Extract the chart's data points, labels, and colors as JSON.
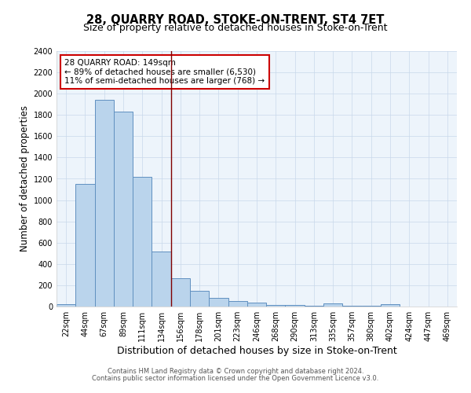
{
  "title": "28, QUARRY ROAD, STOKE-ON-TRENT, ST4 7ET",
  "subtitle": "Size of property relative to detached houses in Stoke-on-Trent",
  "xlabel": "Distribution of detached houses by size in Stoke-on-Trent",
  "ylabel": "Number of detached properties",
  "categories": [
    "22sqm",
    "44sqm",
    "67sqm",
    "89sqm",
    "111sqm",
    "134sqm",
    "156sqm",
    "178sqm",
    "201sqm",
    "223sqm",
    "246sqm",
    "268sqm",
    "290sqm",
    "313sqm",
    "335sqm",
    "357sqm",
    "380sqm",
    "402sqm",
    "424sqm",
    "447sqm",
    "469sqm"
  ],
  "values": [
    25,
    1155,
    1940,
    1830,
    1215,
    520,
    265,
    150,
    80,
    50,
    40,
    15,
    15,
    5,
    30,
    5,
    5,
    20,
    0,
    0,
    0
  ],
  "bar_color": "#bad4ec",
  "bar_edge_color": "#6090c0",
  "vline_x": 5.5,
  "vline_color": "#800000",
  "annotation_text": "28 QUARRY ROAD: 149sqm\n← 89% of detached houses are smaller (6,530)\n11% of semi-detached houses are larger (768) →",
  "annotation_box_color": "#ffffff",
  "annotation_box_edge": "#cc0000",
  "ylim": [
    0,
    2400
  ],
  "yticks": [
    0,
    200,
    400,
    600,
    800,
    1000,
    1200,
    1400,
    1600,
    1800,
    2000,
    2200,
    2400
  ],
  "grid_color": "#c8d8ea",
  "bg_color": "#edf4fb",
  "footer1": "Contains HM Land Registry data © Crown copyright and database right 2024.",
  "footer2": "Contains public sector information licensed under the Open Government Licence v3.0.",
  "title_fontsize": 10.5,
  "subtitle_fontsize": 9,
  "xlabel_fontsize": 9,
  "ylabel_fontsize": 8.5,
  "tick_fontsize": 7,
  "footer_fontsize": 6,
  "annot_fontsize": 7.5
}
